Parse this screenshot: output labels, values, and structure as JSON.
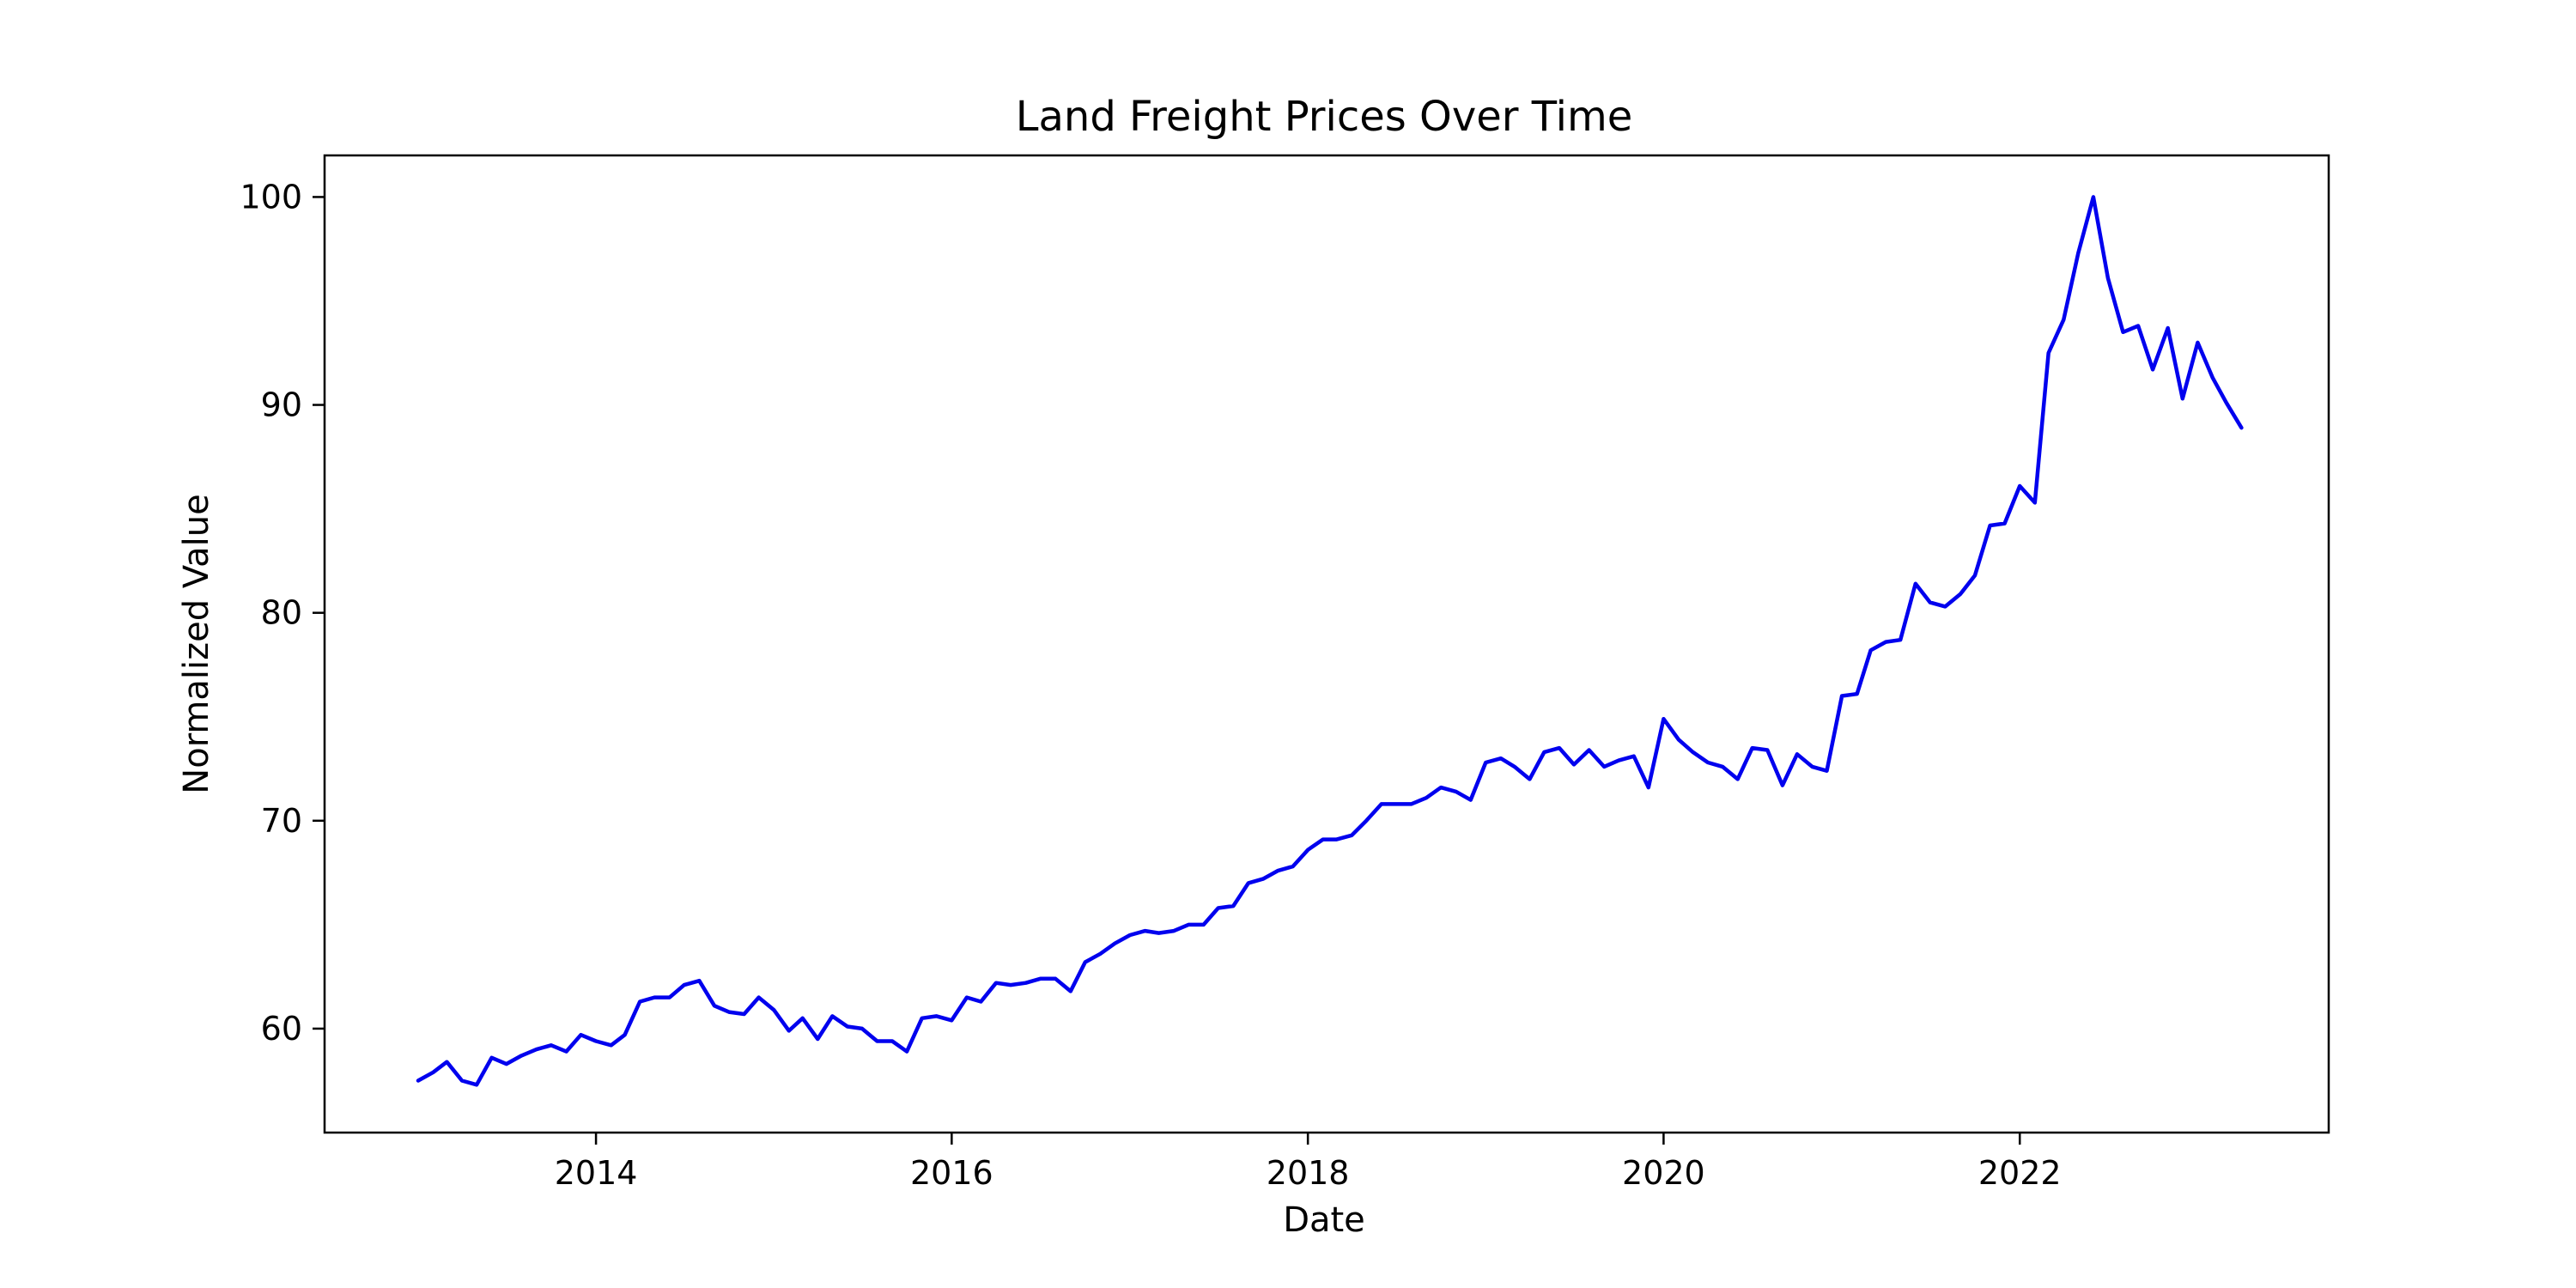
{
  "chart_data": {
    "type": "line",
    "title": "Land Freight Prices Over Time",
    "xlabel": "Date",
    "ylabel": "Normalized Value",
    "xlim": [
      "2012-06-23",
      "2023-09-27"
    ],
    "ylim": [
      55,
      102
    ],
    "xticks": [
      "2014-01-01",
      "2016-01-01",
      "2018-01-01",
      "2020-01-01",
      "2022-01-01"
    ],
    "xtick_labels": [
      "2014",
      "2016",
      "2018",
      "2020",
      "2022"
    ],
    "yticks": [
      60,
      70,
      80,
      90,
      100
    ],
    "ytick_labels": [
      "60",
      "70",
      "80",
      "90",
      "100"
    ],
    "grid": false,
    "line_color": "#0000ee",
    "series": [
      {
        "dates": [
          "2013-01",
          "2013-02",
          "2013-03",
          "2013-04",
          "2013-05",
          "2013-06",
          "2013-07",
          "2013-08",
          "2013-09",
          "2013-10",
          "2013-11",
          "2013-12",
          "2014-01",
          "2014-02",
          "2014-03",
          "2014-04",
          "2014-05",
          "2014-06",
          "2014-07",
          "2014-08",
          "2014-09",
          "2014-10",
          "2014-11",
          "2014-12",
          "2015-01",
          "2015-02",
          "2015-03",
          "2015-04",
          "2015-05",
          "2015-06",
          "2015-07",
          "2015-08",
          "2015-09",
          "2015-10",
          "2015-11",
          "2015-12",
          "2016-01",
          "2016-02",
          "2016-03",
          "2016-04",
          "2016-05",
          "2016-06",
          "2016-07",
          "2016-08",
          "2016-09",
          "2016-10",
          "2016-11",
          "2016-12",
          "2017-01",
          "2017-02",
          "2017-03",
          "2017-04",
          "2017-05",
          "2017-06",
          "2017-07",
          "2017-08",
          "2017-09",
          "2017-10",
          "2017-11",
          "2017-12",
          "2018-01",
          "2018-02",
          "2018-03",
          "2018-04",
          "2018-05",
          "2018-06",
          "2018-07",
          "2018-08",
          "2018-09",
          "2018-10",
          "2018-11",
          "2018-12",
          "2019-01",
          "2019-02",
          "2019-03",
          "2019-04",
          "2019-05",
          "2019-06",
          "2019-07",
          "2019-08",
          "2019-09",
          "2019-10",
          "2019-11",
          "2019-12",
          "2020-01",
          "2020-02",
          "2020-03",
          "2020-04",
          "2020-05",
          "2020-06",
          "2020-07",
          "2020-08",
          "2020-09",
          "2020-10",
          "2020-11",
          "2020-12",
          "2021-01",
          "2021-02",
          "2021-03",
          "2021-04",
          "2021-05",
          "2021-06",
          "2021-07",
          "2021-08",
          "2021-09",
          "2021-10",
          "2021-11",
          "2021-12",
          "2022-01",
          "2022-02",
          "2022-03",
          "2022-04",
          "2022-05",
          "2022-06",
          "2022-07",
          "2022-08",
          "2022-09",
          "2022-10",
          "2022-11",
          "2022-12",
          "2023-01",
          "2023-02",
          "2023-03",
          "2023-04"
        ],
        "values": [
          57.5,
          57.9,
          58.4,
          57.5,
          57.3,
          58.6,
          58.3,
          58.7,
          59.0,
          59.2,
          58.9,
          59.7,
          59.4,
          59.2,
          59.7,
          61.3,
          61.5,
          61.5,
          62.1,
          62.3,
          61.1,
          60.8,
          60.7,
          61.5,
          60.9,
          59.9,
          60.5,
          59.5,
          60.6,
          60.1,
          60.0,
          59.4,
          59.4,
          58.9,
          60.5,
          60.6,
          60.4,
          61.5,
          61.3,
          62.2,
          62.1,
          62.2,
          62.4,
          62.4,
          61.8,
          63.2,
          63.6,
          64.1,
          64.5,
          64.7,
          64.6,
          64.7,
          65.0,
          65.0,
          65.8,
          65.9,
          67.0,
          67.2,
          67.6,
          67.8,
          68.6,
          69.1,
          69.1,
          69.3,
          70.0,
          70.8,
          70.8,
          70.8,
          71.1,
          71.6,
          71.4,
          71.0,
          72.8,
          73.0,
          72.6,
          72.0,
          73.3,
          73.5,
          72.7,
          73.4,
          72.6,
          72.9,
          73.1,
          71.6,
          74.9,
          73.9,
          73.3,
          72.8,
          72.6,
          72.0,
          73.5,
          73.4,
          71.7,
          73.2,
          72.6,
          72.4,
          76.0,
          76.1,
          78.2,
          78.6,
          78.7,
          81.4,
          80.5,
          80.3,
          80.9,
          81.8,
          84.2,
          84.3,
          86.1,
          85.3,
          92.5,
          94.1,
          97.3,
          100.0,
          96.1,
          93.5,
          93.8,
          91.7,
          93.7,
          90.3,
          93.0,
          91.3,
          90.1,
          88.9
        ]
      }
    ]
  }
}
